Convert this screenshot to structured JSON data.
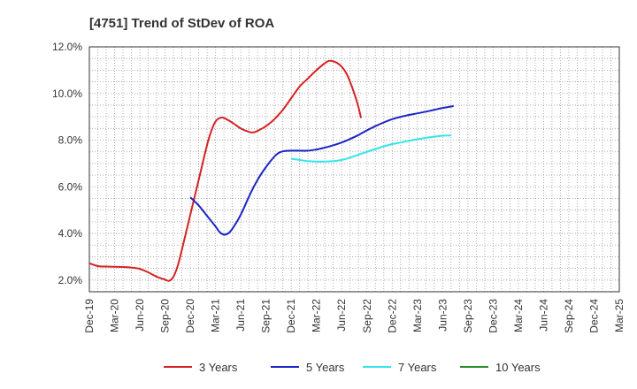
{
  "chart_data": {
    "type": "line",
    "title": "[4751]  Trend of StDev of ROA",
    "xlabel": "",
    "ylabel": "",
    "x_ticks": [
      "Dec-19",
      "Mar-20",
      "Jun-20",
      "Sep-20",
      "Dec-20",
      "Mar-21",
      "Jun-21",
      "Sep-21",
      "Dec-21",
      "Mar-22",
      "Jun-22",
      "Sep-22",
      "Dec-22",
      "Mar-23",
      "Jun-23",
      "Sep-23",
      "Dec-23",
      "Mar-24",
      "Jun-24",
      "Sep-24",
      "Dec-24",
      "Mar-25"
    ],
    "y_ticks": [
      "2.0%",
      "4.0%",
      "6.0%",
      "8.0%",
      "10.0%",
      "12.0%"
    ],
    "ylim": [
      1.5,
      12.0
    ],
    "grid": true,
    "legend_position": "bottom",
    "series": [
      {
        "name": "3 Years",
        "color": "#d62222",
        "points": [
          [
            0,
            2.72
          ],
          [
            1,
            2.6
          ],
          [
            2,
            2.58
          ],
          [
            3,
            2.57
          ],
          [
            4,
            2.56
          ],
          [
            5,
            2.54
          ],
          [
            6,
            2.48
          ],
          [
            7,
            2.33
          ],
          [
            8,
            2.15
          ],
          [
            9,
            2.02
          ],
          [
            9.5,
            1.97
          ],
          [
            10,
            2.15
          ],
          [
            10.5,
            2.6
          ],
          [
            11,
            3.3
          ],
          [
            12,
            4.8
          ],
          [
            13,
            6.3
          ],
          [
            14,
            7.8
          ],
          [
            14.5,
            8.4
          ],
          [
            15,
            8.8
          ],
          [
            15.5,
            8.95
          ],
          [
            16,
            8.95
          ],
          [
            17,
            8.75
          ],
          [
            18,
            8.5
          ],
          [
            19,
            8.35
          ],
          [
            19.5,
            8.33
          ],
          [
            20,
            8.4
          ],
          [
            21,
            8.6
          ],
          [
            22,
            8.9
          ],
          [
            23,
            9.3
          ],
          [
            24,
            9.8
          ],
          [
            25,
            10.3
          ],
          [
            26,
            10.65
          ],
          [
            27,
            11.0
          ],
          [
            28,
            11.3
          ],
          [
            28.5,
            11.4
          ],
          [
            29,
            11.38
          ],
          [
            29.5,
            11.3
          ],
          [
            30,
            11.15
          ],
          [
            30.5,
            10.9
          ],
          [
            31,
            10.5
          ],
          [
            31.5,
            10.0
          ],
          [
            32,
            9.4
          ],
          [
            32.3,
            8.95
          ]
        ]
      },
      {
        "name": "5 Years",
        "color": "#1c25c4",
        "points": [
          [
            12,
            5.55
          ],
          [
            13,
            5.2
          ],
          [
            14,
            4.75
          ],
          [
            15,
            4.3
          ],
          [
            15.5,
            4.05
          ],
          [
            16,
            3.95
          ],
          [
            16.5,
            4.0
          ],
          [
            17,
            4.2
          ],
          [
            18,
            4.8
          ],
          [
            19,
            5.6
          ],
          [
            20,
            6.3
          ],
          [
            21,
            6.85
          ],
          [
            22,
            7.3
          ],
          [
            22.5,
            7.45
          ],
          [
            23,
            7.52
          ],
          [
            24,
            7.55
          ],
          [
            25,
            7.55
          ],
          [
            26,
            7.55
          ],
          [
            27,
            7.6
          ],
          [
            28,
            7.68
          ],
          [
            29,
            7.78
          ],
          [
            30,
            7.9
          ],
          [
            31,
            8.05
          ],
          [
            32,
            8.22
          ],
          [
            33,
            8.42
          ],
          [
            34,
            8.6
          ],
          [
            35,
            8.76
          ],
          [
            36,
            8.9
          ],
          [
            37,
            9.0
          ],
          [
            38,
            9.08
          ],
          [
            39,
            9.15
          ],
          [
            40,
            9.22
          ],
          [
            41,
            9.3
          ],
          [
            42,
            9.38
          ],
          [
            43,
            9.44
          ],
          [
            43.3,
            9.47
          ]
        ]
      },
      {
        "name": "7 Years",
        "color": "#33e5ea",
        "points": [
          [
            24,
            7.2
          ],
          [
            25,
            7.15
          ],
          [
            26,
            7.1
          ],
          [
            27,
            7.08
          ],
          [
            28,
            7.08
          ],
          [
            29,
            7.1
          ],
          [
            30,
            7.15
          ],
          [
            31,
            7.25
          ],
          [
            32,
            7.38
          ],
          [
            33,
            7.5
          ],
          [
            34,
            7.62
          ],
          [
            35,
            7.73
          ],
          [
            36,
            7.83
          ],
          [
            37,
            7.9
          ],
          [
            38,
            7.97
          ],
          [
            39,
            8.04
          ],
          [
            40,
            8.1
          ],
          [
            41,
            8.15
          ],
          [
            42,
            8.19
          ],
          [
            43,
            8.2
          ]
        ]
      },
      {
        "name": "10 Years",
        "color": "#2a8a2a",
        "points": []
      }
    ]
  }
}
